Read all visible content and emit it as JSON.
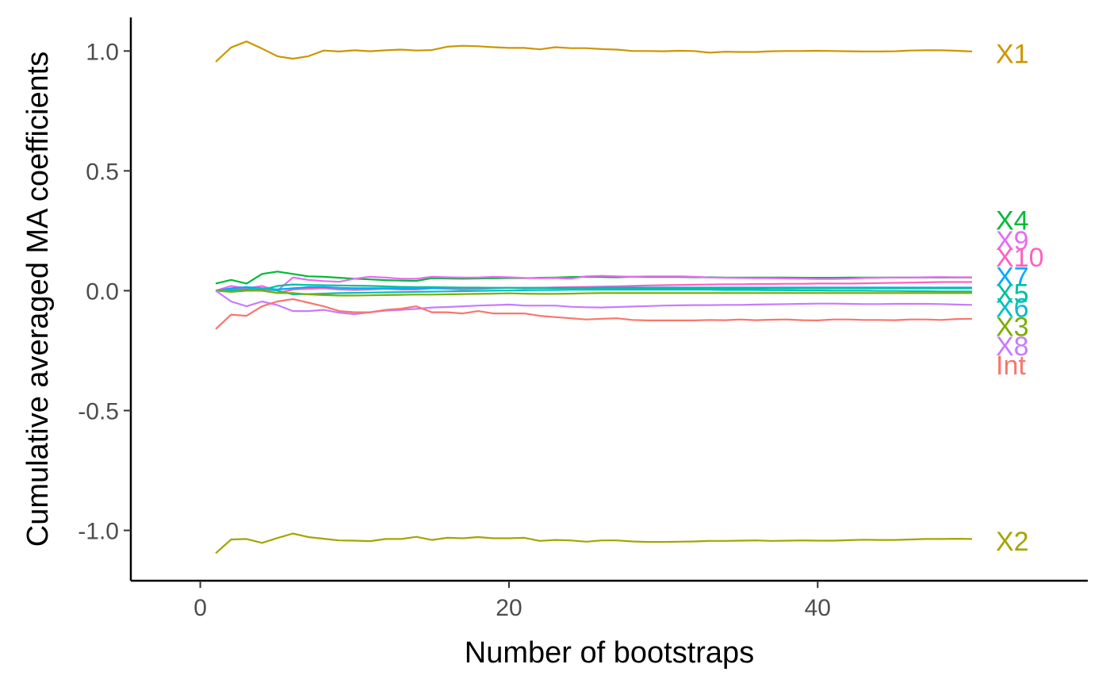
{
  "chart_data": {
    "type": "line",
    "title": "",
    "xlabel": "Number of bootstraps",
    "ylabel": "Cumulative averaged MA coefficients",
    "xlim": [
      -4.5,
      57.5
    ],
    "ylim": [
      -1.21,
      1.14
    ],
    "x_ticks": [
      0,
      20,
      40
    ],
    "x_tick_labels": [
      "0",
      "20",
      "40"
    ],
    "y_ticks": [
      -1.0,
      -0.5,
      0.0,
      0.5,
      1.0
    ],
    "y_tick_labels": [
      "-1.0",
      "-0.5",
      "0.0",
      "0.5",
      "1.0"
    ],
    "grid": false,
    "legend": "direct labels at right end of lines",
    "x": [
      1,
      2,
      3,
      4,
      5,
      6,
      7,
      8,
      9,
      10,
      11,
      12,
      13,
      14,
      15,
      16,
      17,
      18,
      19,
      20,
      21,
      22,
      23,
      24,
      25,
      26,
      27,
      28,
      29,
      30,
      31,
      32,
      33,
      34,
      35,
      36,
      37,
      38,
      39,
      40,
      41,
      42,
      43,
      44,
      45,
      46,
      47,
      48,
      49,
      50
    ],
    "series": [
      {
        "name": "X1",
        "color": "#CD9600",
        "label_y": 0.99,
        "values": [
          0.955,
          1.015,
          1.04,
          1.01,
          0.978,
          0.968,
          0.978,
          1.002,
          0.998,
          1.003,
          0.999,
          1.003,
          1.006,
          1.002,
          1.004,
          1.018,
          1.022,
          1.02,
          1.016,
          1.013,
          1.013,
          1.007,
          1.016,
          1.012,
          1.012,
          1.008,
          1.006,
          1.0,
          1.0,
          0.999,
          1.001,
          1.0,
          0.993,
          0.997,
          0.996,
          0.996,
          0.999,
          1.0,
          1.0,
          1.001,
          1.0,
          0.999,
          0.998,
          0.998,
          0.999,
          1.002,
          1.003,
          1.003,
          1.001,
          0.998
        ]
      },
      {
        "name": "X4",
        "color": "#00BA38",
        "label_y": 0.295,
        "values": [
          0.03,
          0.045,
          0.03,
          0.07,
          0.08,
          0.07,
          0.06,
          0.058,
          0.054,
          0.05,
          0.047,
          0.044,
          0.042,
          0.041,
          0.052,
          0.051,
          0.05,
          0.051,
          0.052,
          0.053,
          0.052,
          0.054,
          0.055,
          0.057,
          0.058,
          0.057,
          0.056,
          0.058,
          0.057,
          0.057,
          0.057,
          0.056,
          0.056,
          0.055,
          0.055,
          0.055,
          0.055,
          0.055,
          0.054,
          0.054,
          0.054,
          0.055,
          0.055,
          0.055,
          0.055,
          0.055,
          0.055,
          0.055,
          0.055,
          0.055
        ]
      },
      {
        "name": "X9",
        "color": "#E76BF3",
        "label_y": 0.21,
        "values": [
          0.0,
          0.02,
          0.01,
          0.02,
          0.0,
          0.055,
          0.045,
          0.04,
          0.037,
          0.05,
          0.058,
          0.055,
          0.05,
          0.05,
          0.058,
          0.056,
          0.055,
          0.055,
          0.058,
          0.056,
          0.053,
          0.052,
          0.053,
          0.05,
          0.06,
          0.062,
          0.06,
          0.058,
          0.06,
          0.06,
          0.06,
          0.058,
          0.055,
          0.054,
          0.053,
          0.052,
          0.052,
          0.051,
          0.05,
          0.049,
          0.049,
          0.05,
          0.053,
          0.054,
          0.055,
          0.055,
          0.056,
          0.057,
          0.056,
          0.056
        ]
      },
      {
        "name": "X10",
        "color": "#FF62BC",
        "label_y": 0.14,
        "values": [
          0.0,
          0.005,
          0.01,
          0.005,
          -0.01,
          0.005,
          0.008,
          0.01,
          0.005,
          0.003,
          0.005,
          0.008,
          0.005,
          0.005,
          0.01,
          0.008,
          0.005,
          0.007,
          0.01,
          0.012,
          0.01,
          0.012,
          0.014,
          0.015,
          0.016,
          0.017,
          0.018,
          0.02,
          0.022,
          0.023,
          0.024,
          0.025,
          0.026,
          0.027,
          0.027,
          0.028,
          0.028,
          0.029,
          0.029,
          0.03,
          0.03,
          0.03,
          0.031,
          0.032,
          0.033,
          0.034,
          0.035,
          0.036,
          0.036,
          0.036
        ]
      },
      {
        "name": "X7",
        "color": "#00A9FF",
        "label_y": 0.06,
        "values": [
          0.0,
          0.01,
          0.015,
          0.01,
          0.005,
          0.01,
          0.015,
          0.015,
          0.012,
          0.01,
          0.01,
          0.01,
          0.009,
          0.01,
          0.011,
          0.012,
          0.012,
          0.012,
          0.012,
          0.012,
          0.012,
          0.012,
          0.012,
          0.012,
          0.012,
          0.013,
          0.013,
          0.013,
          0.013,
          0.013,
          0.013,
          0.013,
          0.013,
          0.013,
          0.013,
          0.013,
          0.013,
          0.013,
          0.013,
          0.013,
          0.013,
          0.013,
          0.013,
          0.013,
          0.013,
          0.013,
          0.013,
          0.013,
          0.013,
          0.013
        ]
      },
      {
        "name": "X5",
        "color": "#00C19F",
        "label_y": -0.01,
        "values": [
          0.0,
          0.002,
          0.004,
          0.003,
          0.02,
          0.026,
          0.024,
          0.023,
          0.022,
          0.021,
          0.02,
          0.018,
          0.016,
          0.015,
          0.015,
          0.014,
          0.013,
          0.013,
          0.012,
          0.012,
          0.012,
          0.012,
          0.011,
          0.011,
          0.011,
          0.011,
          0.01,
          0.01,
          0.01,
          0.01,
          0.01,
          0.01,
          0.01,
          0.01,
          0.01,
          0.01,
          0.01,
          0.01,
          0.01,
          0.01,
          0.01,
          0.01,
          0.01,
          0.01,
          0.01,
          0.01,
          0.01,
          0.01,
          0.01,
          0.01
        ]
      },
      {
        "name": "X6",
        "color": "#00BFC4",
        "label_y": -0.07,
        "values": [
          0.0,
          0.0,
          0.005,
          0.01,
          0.0,
          -0.015,
          -0.014,
          -0.012,
          -0.01,
          -0.009,
          -0.008,
          -0.007,
          -0.006,
          -0.005,
          -0.004,
          -0.003,
          -0.002,
          -0.001,
          0.0,
          0.001,
          0.002,
          0.003,
          0.003,
          0.004,
          0.004,
          0.004,
          0.004,
          0.004,
          0.004,
          0.004,
          0.004,
          0.004,
          0.004,
          0.003,
          0.003,
          0.003,
          0.002,
          0.002,
          0.001,
          0.001,
          0.0,
          0.0,
          0.0,
          -0.001,
          -0.001,
          -0.002,
          -0.002,
          -0.003,
          -0.003,
          -0.003
        ]
      },
      {
        "name": "X3",
        "color": "#7CAE00",
        "label_y": -0.15,
        "values": [
          0.0,
          -0.005,
          0.0,
          0.0,
          -0.01,
          -0.01,
          -0.015,
          -0.018,
          -0.02,
          -0.02,
          -0.019,
          -0.018,
          -0.017,
          -0.016,
          -0.016,
          -0.015,
          -0.014,
          -0.013,
          -0.012,
          -0.011,
          -0.012,
          -0.013,
          -0.013,
          -0.012,
          -0.011,
          -0.01,
          -0.01,
          -0.01,
          -0.01,
          -0.01,
          -0.01,
          -0.01,
          -0.01,
          -0.01,
          -0.01,
          -0.01,
          -0.01,
          -0.01,
          -0.01,
          -0.01,
          -0.01,
          -0.01,
          -0.01,
          -0.01,
          -0.01,
          -0.01,
          -0.01,
          -0.01,
          -0.01,
          -0.01
        ]
      },
      {
        "name": "X8",
        "color": "#C77CFF",
        "label_y": -0.23,
        "values": [
          0.0,
          -0.045,
          -0.065,
          -0.045,
          -0.06,
          -0.085,
          -0.085,
          -0.08,
          -0.092,
          -0.098,
          -0.09,
          -0.083,
          -0.08,
          -0.076,
          -0.07,
          -0.068,
          -0.065,
          -0.062,
          -0.06,
          -0.058,
          -0.062,
          -0.062,
          -0.062,
          -0.067,
          -0.069,
          -0.07,
          -0.068,
          -0.066,
          -0.064,
          -0.062,
          -0.061,
          -0.06,
          -0.06,
          -0.059,
          -0.059,
          -0.058,
          -0.057,
          -0.056,
          -0.055,
          -0.054,
          -0.054,
          -0.055,
          -0.056,
          -0.056,
          -0.055,
          -0.055,
          -0.055,
          -0.056,
          -0.058,
          -0.059
        ]
      },
      {
        "name": "Int",
        "color": "#F8766D",
        "label_y": -0.31,
        "values": [
          -0.16,
          -0.1,
          -0.105,
          -0.065,
          -0.045,
          -0.035,
          -0.05,
          -0.065,
          -0.085,
          -0.09,
          -0.09,
          -0.08,
          -0.075,
          -0.065,
          -0.09,
          -0.09,
          -0.095,
          -0.085,
          -0.095,
          -0.095,
          -0.095,
          -0.105,
          -0.11,
          -0.115,
          -0.12,
          -0.117,
          -0.115,
          -0.122,
          -0.124,
          -0.124,
          -0.124,
          -0.124,
          -0.122,
          -0.123,
          -0.12,
          -0.123,
          -0.121,
          -0.12,
          -0.123,
          -0.124,
          -0.12,
          -0.12,
          -0.122,
          -0.122,
          -0.123,
          -0.12,
          -0.12,
          -0.122,
          -0.118,
          -0.117
        ]
      },
      {
        "name": "X2",
        "color": "#A3A500",
        "label_y": -1.045,
        "values": [
          -1.095,
          -1.038,
          -1.036,
          -1.052,
          -1.032,
          -1.013,
          -1.028,
          -1.035,
          -1.042,
          -1.043,
          -1.045,
          -1.036,
          -1.036,
          -1.027,
          -1.04,
          -1.031,
          -1.033,
          -1.028,
          -1.033,
          -1.033,
          -1.031,
          -1.044,
          -1.04,
          -1.042,
          -1.047,
          -1.042,
          -1.042,
          -1.046,
          -1.048,
          -1.048,
          -1.047,
          -1.046,
          -1.044,
          -1.044,
          -1.043,
          -1.042,
          -1.044,
          -1.043,
          -1.042,
          -1.043,
          -1.043,
          -1.041,
          -1.039,
          -1.04,
          -1.04,
          -1.038,
          -1.036,
          -1.036,
          -1.035,
          -1.036
        ]
      }
    ]
  }
}
